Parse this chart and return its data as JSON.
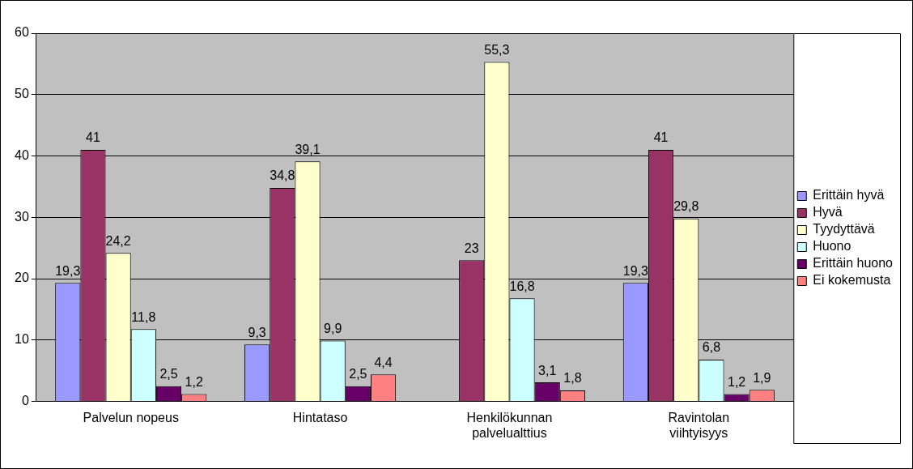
{
  "chart_data": {
    "type": "bar",
    "categories": [
      "Palvelun nopeus",
      "Hintataso",
      "Henkilökunnan palvelualttius",
      "Ravintolan viihtyisyys"
    ],
    "series": [
      {
        "name": "Erittäin hyvä",
        "color": "#9999ff",
        "values": [
          19.3,
          9.3,
          null,
          19.3
        ],
        "value_labels": [
          "19,3",
          "9,3",
          null,
          "19,3"
        ]
      },
      {
        "name": "Hyvä",
        "color": "#993366",
        "values": [
          41,
          34.8,
          23,
          41
        ],
        "value_labels": [
          "41",
          "34,8",
          "23",
          "41"
        ]
      },
      {
        "name": "Tyydyttävä",
        "color": "#ffffcc",
        "values": [
          24.2,
          39.1,
          55.3,
          29.8
        ],
        "value_labels": [
          "24,2",
          "39,1",
          "55,3",
          "29,8"
        ]
      },
      {
        "name": "Huono",
        "color": "#ccffff",
        "values": [
          11.8,
          9.9,
          16.8,
          6.8
        ],
        "value_labels": [
          "11,8",
          "9,9",
          "16,8",
          "6,8"
        ]
      },
      {
        "name": "Erittäin huono",
        "color": "#660066",
        "values": [
          2.5,
          2.5,
          3.1,
          1.2
        ],
        "value_labels": [
          "2,5",
          "2,5",
          "3,1",
          "1,2"
        ]
      },
      {
        "name": "Ei kokemusta",
        "color": "#ff8080",
        "values": [
          1.2,
          4.4,
          1.8,
          1.9
        ],
        "value_labels": [
          "1,2",
          "4,4",
          "1,8",
          "1,9"
        ]
      }
    ],
    "ylim": [
      0,
      60
    ],
    "yticks": [
      0,
      10,
      20,
      30,
      40,
      50,
      60
    ],
    "grid": "y",
    "legend": "right"
  }
}
